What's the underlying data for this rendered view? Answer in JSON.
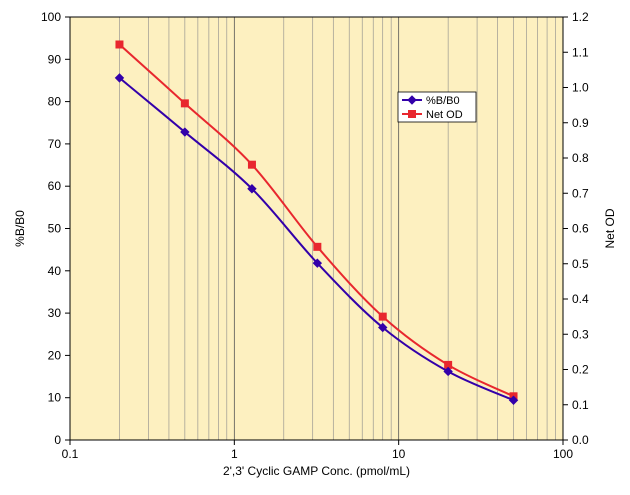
{
  "chart_data": {
    "type": "line",
    "title": "",
    "xlabel": "2',3' Cyclic GAMP Conc. (pmol/mL)",
    "ylabel": "%B/B0",
    "y2label": "Net OD",
    "xscale": "log",
    "xlim": [
      0.1,
      100
    ],
    "ylim": [
      0,
      100
    ],
    "y2lim": [
      0,
      1.2
    ],
    "grid": true,
    "background_color": "#fdf0c0",
    "legend_position": "upper-right",
    "x_ticks": [
      "0.1",
      "1",
      "10",
      "100"
    ],
    "y_ticks": [
      "0",
      "10",
      "20",
      "30",
      "40",
      "50",
      "60",
      "70",
      "80",
      "90",
      "100"
    ],
    "y2_ticks": [
      "0.0",
      "0.1",
      "0.2",
      "0.3",
      "0.4",
      "0.5",
      "0.6",
      "0.7",
      "0.8",
      "0.9",
      "1.0",
      "1.1",
      "1.2"
    ],
    "series": [
      {
        "name": "%B/B0",
        "axis": "left",
        "color": "#3300aa",
        "marker": "diamond",
        "x": [
          0.2,
          0.5,
          1.28,
          3.2,
          8.0,
          20.0,
          50.0
        ],
        "y": [
          85.6,
          72.8,
          59.4,
          41.8,
          26.6,
          16.2,
          9.4
        ]
      },
      {
        "name": "Net OD",
        "axis": "right",
        "color": "#e8272e",
        "marker": "square",
        "x": [
          0.2,
          0.5,
          1.28,
          3.2,
          8.0,
          20.0,
          50.0
        ],
        "y": [
          1.122,
          0.955,
          0.781,
          0.548,
          0.35,
          0.213,
          0.124
        ]
      }
    ]
  }
}
